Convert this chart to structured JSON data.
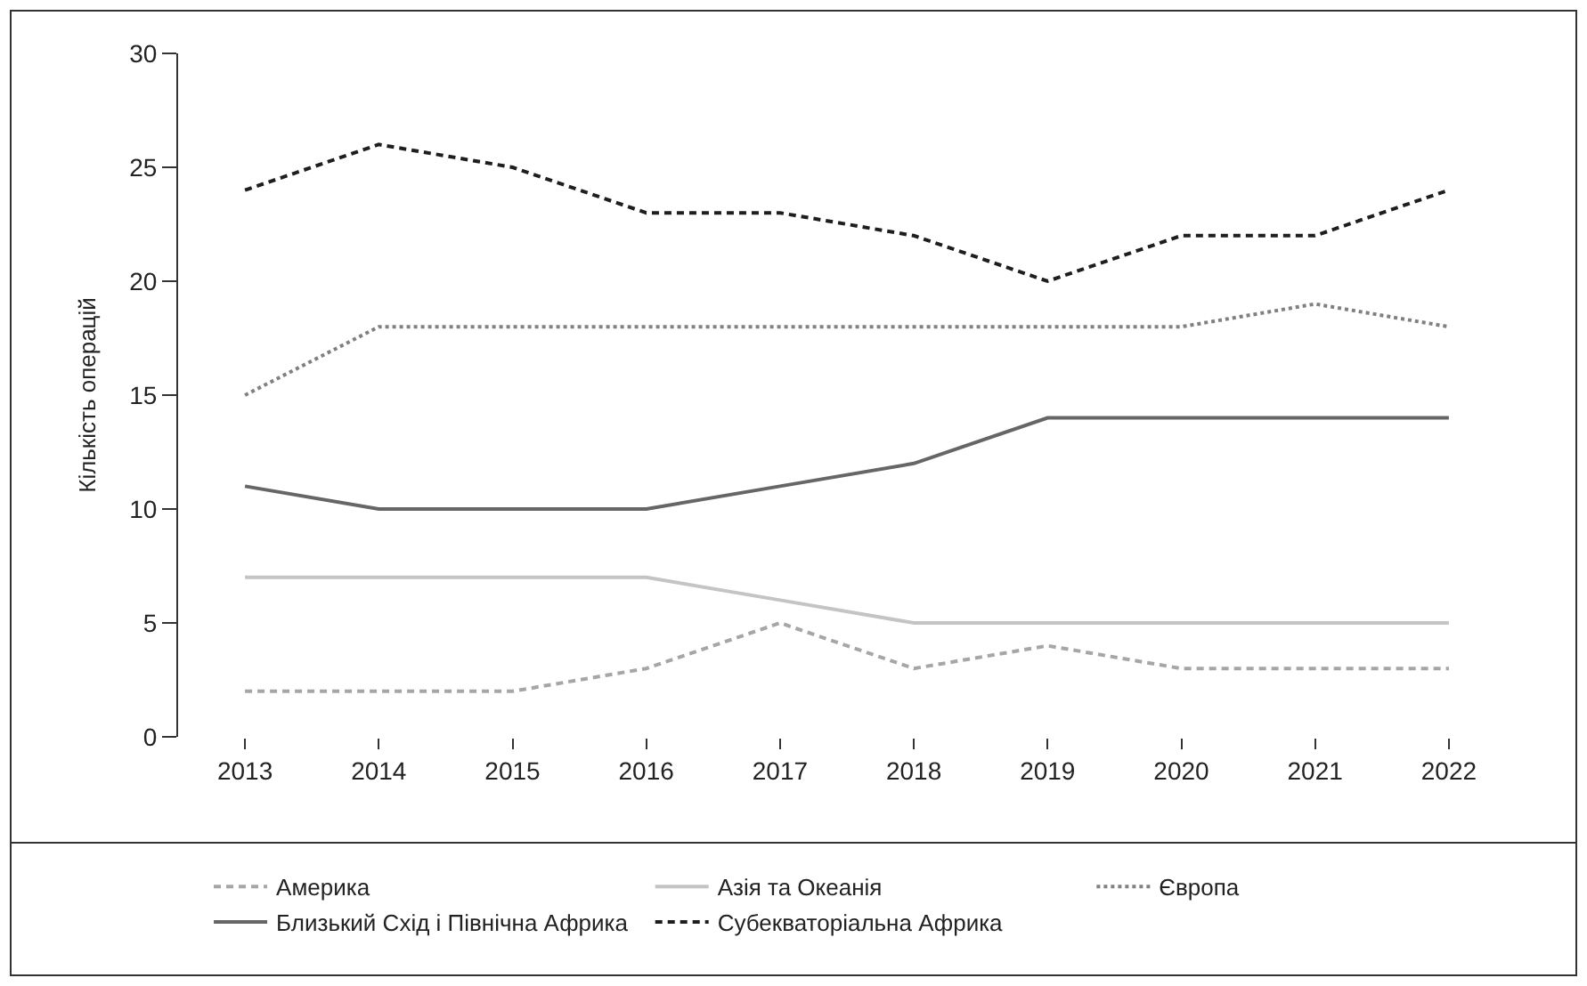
{
  "chart_data": {
    "type": "line",
    "ylabel": "Кількість операцій",
    "categories": [
      "2013",
      "2014",
      "2015",
      "2016",
      "2017",
      "2018",
      "2019",
      "2020",
      "2021",
      "2022"
    ],
    "ylim": [
      0,
      30
    ],
    "yticks": [
      0,
      5,
      10,
      15,
      20,
      25,
      30
    ],
    "legend": "bottom",
    "marker": "none",
    "series": [
      {
        "name": "Америка",
        "color": "#a6a6a6",
        "line_style": "dashed",
        "values": [
          2,
          2,
          2,
          3,
          5,
          3,
          4,
          3,
          3,
          3
        ]
      },
      {
        "name": "Азія та Океанія",
        "color": "#c4c4c4",
        "line_style": "solid",
        "values": [
          7,
          7,
          7,
          7,
          6,
          5,
          5,
          5,
          5,
          5
        ]
      },
      {
        "name": "Європа",
        "color": "#808080",
        "line_style": "dotted",
        "values": [
          15,
          18,
          18,
          18,
          18,
          18,
          18,
          18,
          19,
          18
        ]
      },
      {
        "name": "Близький Схід і Північна Африка",
        "color": "#666666",
        "line_style": "solid",
        "values": [
          11,
          10,
          10,
          10,
          11,
          12,
          14,
          14,
          14,
          14
        ]
      },
      {
        "name": "Субекваторіальна Африка",
        "color": "#1e1e1e",
        "line_style": "dashed",
        "values": [
          24,
          26,
          25,
          23,
          23,
          22,
          20,
          22,
          22,
          24
        ]
      }
    ]
  }
}
